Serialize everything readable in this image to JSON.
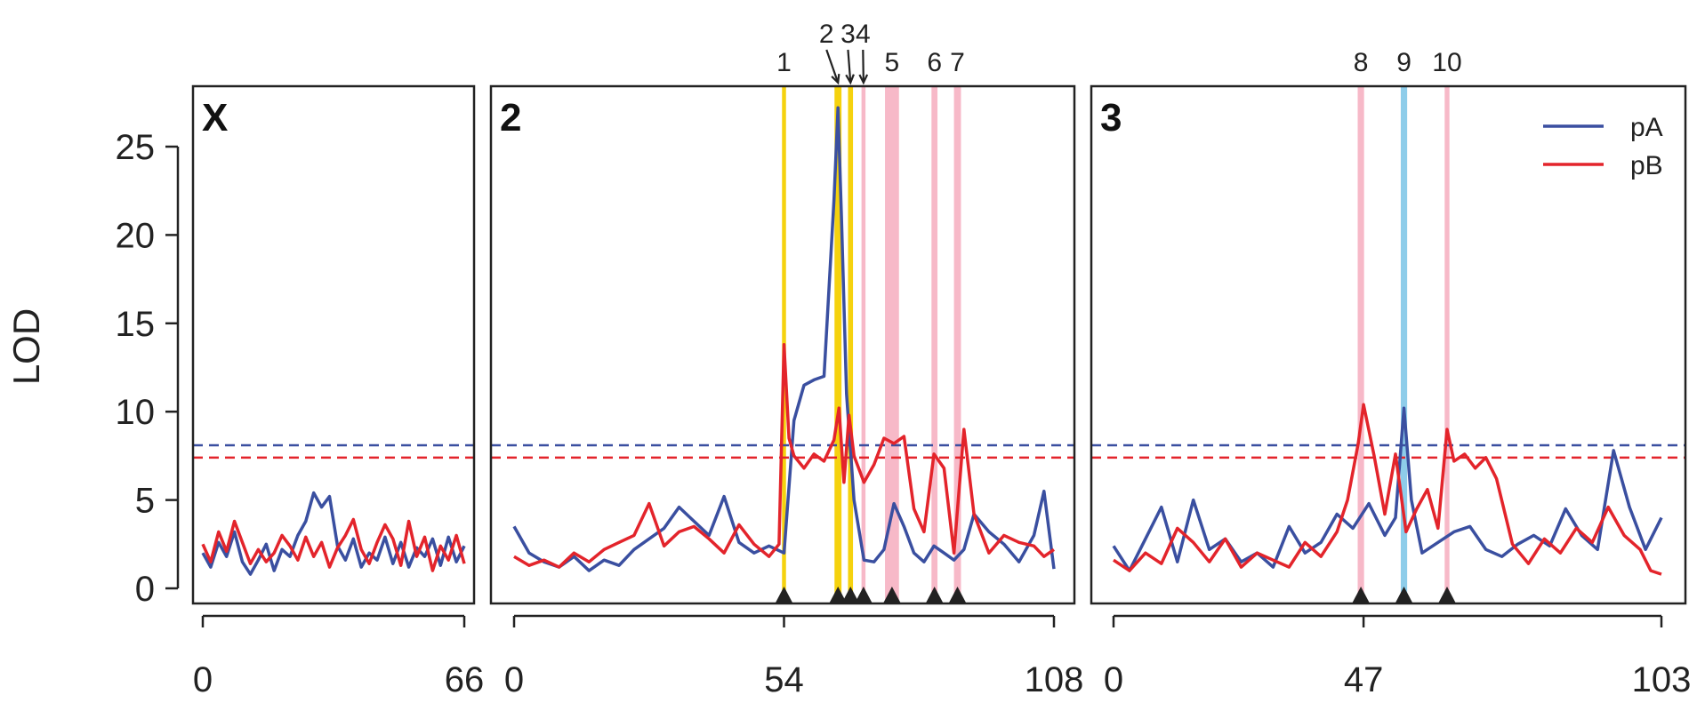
{
  "chart_data": {
    "type": "line",
    "ylabel": "LOD",
    "ylim": [
      0,
      28
    ],
    "yticks": [
      0,
      5,
      10,
      15,
      20,
      25
    ],
    "thresholds": {
      "pA": 8.1,
      "pB": 7.4
    },
    "colors": {
      "pA": "#3a4fa0",
      "pB": "#e3242b",
      "yellow": "#f5d20e",
      "pink": "#f7b9c8",
      "blue": "#8ecdea"
    },
    "legend": {
      "position": "top-right",
      "entries": [
        {
          "name": "pA",
          "color": "#3a4fa0"
        },
        {
          "name": "pB",
          "color": "#e3242b"
        }
      ]
    },
    "panels": [
      {
        "label": "X",
        "xlim": [
          0,
          66
        ],
        "xticks": [
          "0",
          "66"
        ],
        "peaks": [],
        "series": [
          {
            "name": "pA",
            "x": [
              0,
              2,
              4,
              6,
              8,
              10,
              12,
              14,
              16,
              18,
              20,
              22,
              24,
              26,
              28,
              30,
              32,
              34,
              36,
              38,
              40,
              42,
              44,
              46,
              48,
              50,
              52,
              54,
              56,
              58,
              60,
              62,
              64,
              66
            ],
            "values": [
              2.0,
              1.2,
              2.6,
              1.8,
              3.2,
              1.5,
              0.8,
              1.6,
              2.5,
              1.0,
              2.2,
              1.8,
              3.0,
              3.8,
              5.4,
              4.6,
              5.2,
              2.4,
              1.6,
              2.8,
              1.2,
              2.0,
              1.6,
              2.9,
              1.4,
              2.6,
              1.2,
              2.3,
              1.8,
              2.8,
              1.3,
              2.9,
              1.5,
              2.4
            ]
          },
          {
            "name": "pB",
            "x": [
              0,
              2,
              4,
              6,
              8,
              10,
              12,
              14,
              16,
              18,
              20,
              22,
              24,
              26,
              28,
              30,
              32,
              34,
              36,
              38,
              40,
              42,
              44,
              46,
              48,
              50,
              52,
              54,
              56,
              58,
              60,
              62,
              64,
              66
            ],
            "values": [
              2.5,
              1.5,
              3.2,
              2.1,
              3.8,
              2.6,
              1.4,
              2.2,
              1.5,
              2.0,
              3.0,
              2.4,
              1.6,
              2.9,
              1.8,
              2.6,
              1.2,
              2.3,
              3.0,
              3.9,
              2.2,
              1.4,
              2.6,
              3.6,
              2.8,
              1.3,
              3.8,
              1.8,
              2.9,
              1.0,
              2.4,
              1.6,
              3.0,
              1.4
            ]
          }
        ]
      },
      {
        "label": "2",
        "xlim": [
          0,
          108
        ],
        "xticks": [
          "0",
          "54",
          "108"
        ],
        "peaks": [
          {
            "id": "1",
            "pos": 54,
            "color": "yellow",
            "width": 0.8,
            "arrow": false
          },
          {
            "id": "2",
            "pos": 64.8,
            "color": "yellow",
            "width": 1.4,
            "arrow": true,
            "label_pos": 62.5
          },
          {
            "id": "3",
            "pos": 67.3,
            "color": "yellow",
            "width": 1.0,
            "arrow": true,
            "label_pos": 66.8
          },
          {
            "id": "4",
            "pos": 69.9,
            "color": "pink",
            "width": 0.8,
            "arrow": true,
            "label_pos": 69.8
          },
          {
            "id": "5",
            "pos": 75.6,
            "color": "pink",
            "width": 2.8,
            "arrow": false
          },
          {
            "id": "6",
            "pos": 84.1,
            "color": "pink",
            "width": 1.2,
            "arrow": false
          },
          {
            "id": "7",
            "pos": 88.7,
            "color": "pink",
            "width": 1.4,
            "arrow": false
          }
        ],
        "series": [
          {
            "name": "pA",
            "x": [
              0,
              3,
              6,
              9,
              12,
              15,
              18,
              21,
              24,
              27,
              30,
              33,
              36,
              39,
              42,
              45,
              48,
              51,
              54,
              56,
              58,
              60,
              62,
              63,
              64,
              64.8,
              65.5,
              66.5,
              68,
              70,
              72,
              74,
              76,
              78,
              80,
              82,
              84,
              86,
              88,
              90,
              92,
              95,
              98,
              101,
              104,
              106,
              108
            ],
            "values": [
              3.5,
              2.0,
              1.5,
              1.2,
              1.8,
              1.0,
              1.6,
              1.3,
              2.2,
              2.8,
              3.4,
              4.6,
              3.8,
              3.0,
              5.2,
              2.6,
              2.0,
              2.4,
              2.0,
              9.5,
              11.5,
              11.8,
              12.0,
              17.0,
              22.0,
              27.2,
              21.0,
              11.0,
              5.0,
              1.6,
              1.5,
              2.2,
              4.8,
              3.5,
              2.0,
              1.5,
              2.4,
              2.0,
              1.6,
              2.2,
              4.2,
              3.2,
              2.5,
              1.5,
              3.0,
              5.5,
              1.1
            ]
          },
          {
            "name": "pB",
            "x": [
              0,
              3,
              6,
              9,
              12,
              15,
              18,
              21,
              24,
              27,
              30,
              33,
              36,
              39,
              42,
              45,
              48,
              51,
              53,
              54,
              55,
              56,
              58,
              60,
              62,
              64,
              65,
              66,
              67,
              68,
              70,
              72,
              74,
              76,
              78,
              80,
              82,
              84,
              86,
              88,
              90,
              92,
              95,
              98,
              101,
              104,
              106,
              108
            ],
            "values": [
              1.8,
              1.3,
              1.6,
              1.2,
              2.0,
              1.5,
              2.2,
              2.6,
              3.0,
              4.8,
              2.4,
              3.2,
              3.5,
              2.8,
              2.0,
              3.6,
              2.5,
              1.8,
              2.5,
              13.8,
              8.5,
              7.5,
              6.8,
              7.6,
              7.2,
              8.4,
              10.2,
              6.0,
              9.8,
              7.5,
              6.0,
              7.0,
              8.5,
              8.2,
              8.6,
              4.5,
              3.2,
              7.6,
              6.8,
              2.0,
              9.0,
              4.2,
              2.0,
              3.0,
              2.6,
              2.4,
              1.8,
              2.2
            ]
          }
        ]
      },
      {
        "label": "3",
        "xlim": [
          0,
          103
        ],
        "xticks": [
          "0",
          "47",
          "103"
        ],
        "peaks": [
          {
            "id": "8",
            "pos": 46.5,
            "color": "pink",
            "width": 1.2,
            "arrow": false
          },
          {
            "id": "9",
            "pos": 54.6,
            "color": "blue",
            "width": 1.2,
            "arrow": false
          },
          {
            "id": "10",
            "pos": 62.7,
            "color": "pink",
            "width": 0.9,
            "arrow": false
          }
        ],
        "series": [
          {
            "name": "pA",
            "x": [
              0,
              3,
              6,
              9,
              12,
              15,
              18,
              21,
              24,
              27,
              30,
              33,
              36,
              39,
              42,
              45,
              48,
              51,
              53,
              54.6,
              56,
              58,
              61,
              64,
              67,
              70,
              73,
              76,
              79,
              82,
              85,
              88,
              91,
              94,
              97,
              100,
              103
            ],
            "values": [
              2.4,
              1.0,
              2.8,
              4.6,
              1.5,
              5.0,
              2.2,
              2.8,
              1.5,
              2.0,
              1.2,
              3.5,
              2.0,
              2.6,
              4.2,
              3.4,
              4.8,
              3.0,
              4.0,
              10.2,
              5.0,
              2.0,
              2.6,
              3.2,
              3.5,
              2.2,
              1.8,
              2.5,
              3.0,
              2.4,
              4.5,
              3.0,
              2.2,
              7.8,
              4.6,
              2.2,
              4.0
            ]
          },
          {
            "name": "pB",
            "x": [
              0,
              3,
              6,
              9,
              12,
              15,
              18,
              21,
              24,
              27,
              30,
              33,
              36,
              39,
              42,
              44,
              46,
              47,
              49,
              51,
              53,
              55,
              57,
              59,
              61,
              62.7,
              64,
              66,
              68,
              70,
              72,
              75,
              78,
              81,
              84,
              87,
              90,
              93,
              96,
              99,
              101,
              103
            ],
            "values": [
              1.6,
              1.0,
              2.0,
              1.4,
              3.4,
              2.6,
              1.5,
              2.8,
              1.2,
              2.0,
              1.6,
              1.2,
              2.6,
              1.8,
              3.2,
              5.0,
              8.2,
              10.4,
              7.5,
              4.2,
              7.6,
              3.2,
              4.5,
              5.6,
              3.4,
              9.0,
              7.2,
              7.6,
              6.8,
              7.4,
              6.2,
              2.5,
              1.4,
              2.8,
              2.0,
              3.4,
              2.6,
              4.6,
              3.0,
              2.2,
              1.0,
              0.8
            ]
          }
        ]
      }
    ]
  }
}
